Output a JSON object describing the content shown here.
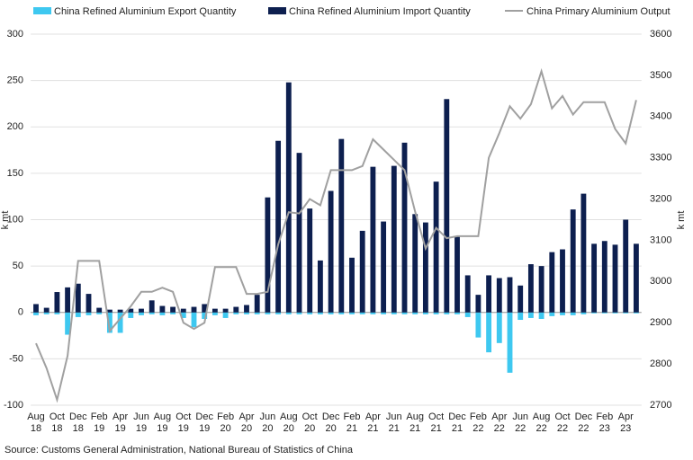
{
  "chart_data": {
    "type": "bar",
    "source": "Source: Customs General Administration, National Bureau of Statistics of China",
    "ylabel": "k mt",
    "y2label": "k mt",
    "categories": [
      "Aug 18",
      null,
      "Oct 18",
      null,
      "Dec 18",
      null,
      "Feb 19",
      null,
      "Apr 19",
      null,
      "Jun 19",
      null,
      "Aug 19",
      null,
      "Oct 19",
      null,
      "Dec 19",
      null,
      "Feb 20",
      null,
      "Apr 20",
      null,
      "Jun 20",
      null,
      "Aug 20",
      null,
      "Oct 20",
      null,
      "Dec 20",
      null,
      "Feb 21",
      null,
      "Apr 21",
      null,
      "Jun 21",
      null,
      "Aug 21",
      null,
      "Oct 21",
      null,
      "Dec 21",
      null,
      "Feb 22",
      null,
      "Apr 22",
      null,
      "Jun 22",
      null,
      "Aug 22",
      null,
      "Oct 22",
      null,
      "Dec 22",
      null,
      "Feb 23",
      null,
      "Apr 23",
      null
    ],
    "series": [
      {
        "name": "China Refined Aluminium Export Quantity",
        "type": "bar",
        "color": "#3ec8f0",
        "values": [
          -3,
          -2,
          -2,
          -24,
          -5,
          -3,
          -2,
          -22,
          -22,
          -6,
          -3,
          -2,
          -3,
          -2,
          -6,
          -16,
          -7,
          -3,
          -6,
          -2,
          -2,
          -2,
          -2,
          -2,
          -2,
          -2,
          -2,
          -2,
          -2,
          -2,
          -2,
          -2,
          -2,
          -2,
          -2,
          -2,
          -2,
          -2,
          -2,
          -2,
          -2,
          -5,
          -27,
          -43,
          -33,
          -65,
          -8,
          -6,
          -7,
          -4,
          -3,
          -3,
          -2,
          -1,
          -1,
          -1,
          -1,
          -1
        ]
      },
      {
        "name": "China Refined Aluminium Import Quantity",
        "type": "bar",
        "color": "#0d1f4f",
        "values": [
          9,
          5,
          22,
          27,
          31,
          20,
          5,
          3,
          3,
          4,
          4,
          13,
          7,
          6,
          4,
          6,
          9,
          4,
          4,
          6,
          8,
          19,
          124,
          185,
          248,
          172,
          112,
          56,
          131,
          187,
          59,
          88,
          157,
          98,
          158,
          183,
          106,
          97,
          141,
          230,
          82,
          40,
          19,
          40,
          37,
          38,
          29,
          52,
          50,
          65,
          68,
          111,
          128,
          74,
          77,
          73,
          100,
          74
        ]
      },
      {
        "name": "China Primary Aluminium Output",
        "type": "line",
        "axis": "y2",
        "color": "#a0a0a0",
        "values": [
          2850,
          2790,
          2713,
          2820,
          3050,
          3050,
          3050,
          2880,
          2910,
          2940,
          2975,
          2975,
          2985,
          2975,
          2900,
          2885,
          2900,
          3035,
          3035,
          3035,
          2970,
          2970,
          2975,
          3090,
          3168,
          3165,
          3200,
          3185,
          3270,
          3270,
          3270,
          3280,
          3345,
          3320,
          3295,
          3270,
          3170,
          3080,
          3130,
          3105,
          3110,
          3110,
          3110,
          3300,
          3360,
          3425,
          3395,
          3430,
          3510,
          3420,
          3450,
          3405,
          3435,
          3435,
          3435,
          3370,
          3335,
          3440
        ]
      }
    ],
    "ylim": [
      -100,
      300
    ],
    "yticks": [
      -100,
      -50,
      0,
      50,
      100,
      150,
      200,
      250,
      300
    ],
    "y2lim": [
      2700,
      3600
    ],
    "y2ticks": [
      2700,
      2800,
      2900,
      3000,
      3100,
      3200,
      3300,
      3400,
      3500,
      3600
    ],
    "grid": true
  }
}
